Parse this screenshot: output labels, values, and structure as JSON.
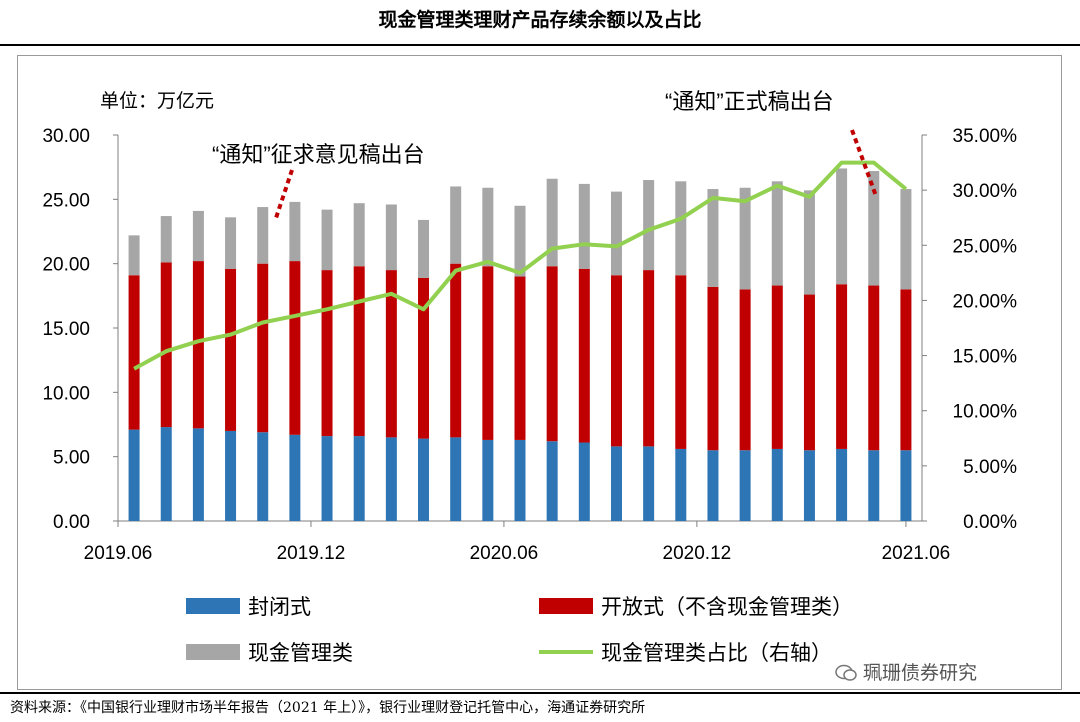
{
  "page_title": "现金管理类理财产品存续余额以及占比",
  "unit_label": "单位：万亿元",
  "annotations": [
    {
      "text": "“通知”征求意见稿出台",
      "at_index": 4
    },
    {
      "text": "“通知”正式稿出台",
      "at_index": 23
    }
  ],
  "legend": {
    "closed": "封闭式",
    "open": "开放式（不含现金管理类）",
    "cash": "现金管理类",
    "ratio": "现金管理类占比（右轴）"
  },
  "footer_source": "资料来源：《中国银行业理财市场半年报告（2021 年上）》，银行业理财登记托管中心，海通证券研究所",
  "watermark": "珮珊债券研究",
  "colors": {
    "closed": "#2e75b6",
    "open": "#c00000",
    "cash": "#a6a6a6",
    "ratio": "#92d050"
  },
  "chart_data": {
    "type": "bar",
    "stacked": true,
    "title": "现金管理类理财产品存续余额以及占比",
    "ylabel": "单位：万亿元",
    "ylim": [
      0,
      30
    ],
    "y_ticks": [
      "0.00",
      "5.00",
      "10.00",
      "15.00",
      "20.00",
      "25.00",
      "30.00"
    ],
    "y2lim": [
      0,
      35
    ],
    "y2_ticks": [
      "0.00%",
      "5.00%",
      "10.00%",
      "15.00%",
      "20.00%",
      "25.00%",
      "30.00%",
      "35.00%"
    ],
    "x_tick_labels": [
      {
        "label": "2019.06",
        "index": 0
      },
      {
        "label": "2019.12",
        "index": 6
      },
      {
        "label": "2020.06",
        "index": 12
      },
      {
        "label": "2020.12",
        "index": 18
      },
      {
        "label": "2021.06",
        "index": 24
      }
    ],
    "n_points": 25,
    "series": [
      {
        "name": "封闭式",
        "axis": "left",
        "values": [
          7.1,
          7.3,
          7.2,
          7.0,
          6.9,
          6.7,
          6.6,
          6.6,
          6.5,
          6.4,
          6.5,
          6.3,
          6.3,
          6.2,
          6.1,
          5.8,
          5.8,
          5.6,
          5.5,
          5.5,
          5.6,
          5.5,
          5.6,
          5.5,
          5.5
        ]
      },
      {
        "name": "开放式（不含现金管理类）",
        "axis": "left",
        "values": [
          12.0,
          12.8,
          13.0,
          12.6,
          13.1,
          13.5,
          12.9,
          13.2,
          13.0,
          12.5,
          13.5,
          13.5,
          12.7,
          13.6,
          13.5,
          13.3,
          13.7,
          13.5,
          12.7,
          12.5,
          12.7,
          12.1,
          12.8,
          12.8,
          12.5
        ]
      },
      {
        "name": "现金管理类",
        "axis": "left",
        "values": [
          3.1,
          3.6,
          3.9,
          4.0,
          4.4,
          4.6,
          4.7,
          4.9,
          5.1,
          4.5,
          6.0,
          6.1,
          5.5,
          6.8,
          6.6,
          6.5,
          7.0,
          7.3,
          7.6,
          7.9,
          8.1,
          8.1,
          9.0,
          8.9,
          7.8
        ]
      },
      {
        "name": "现金管理类占比（右轴）",
        "axis": "right",
        "type": "line",
        "values": [
          13.8,
          15.4,
          16.3,
          16.9,
          18.0,
          18.6,
          19.2,
          19.9,
          20.6,
          19.2,
          22.7,
          23.5,
          22.5,
          24.7,
          25.1,
          24.9,
          26.4,
          27.4,
          29.3,
          29.0,
          30.4,
          29.4,
          32.5,
          32.5,
          30.1
        ]
      }
    ]
  }
}
